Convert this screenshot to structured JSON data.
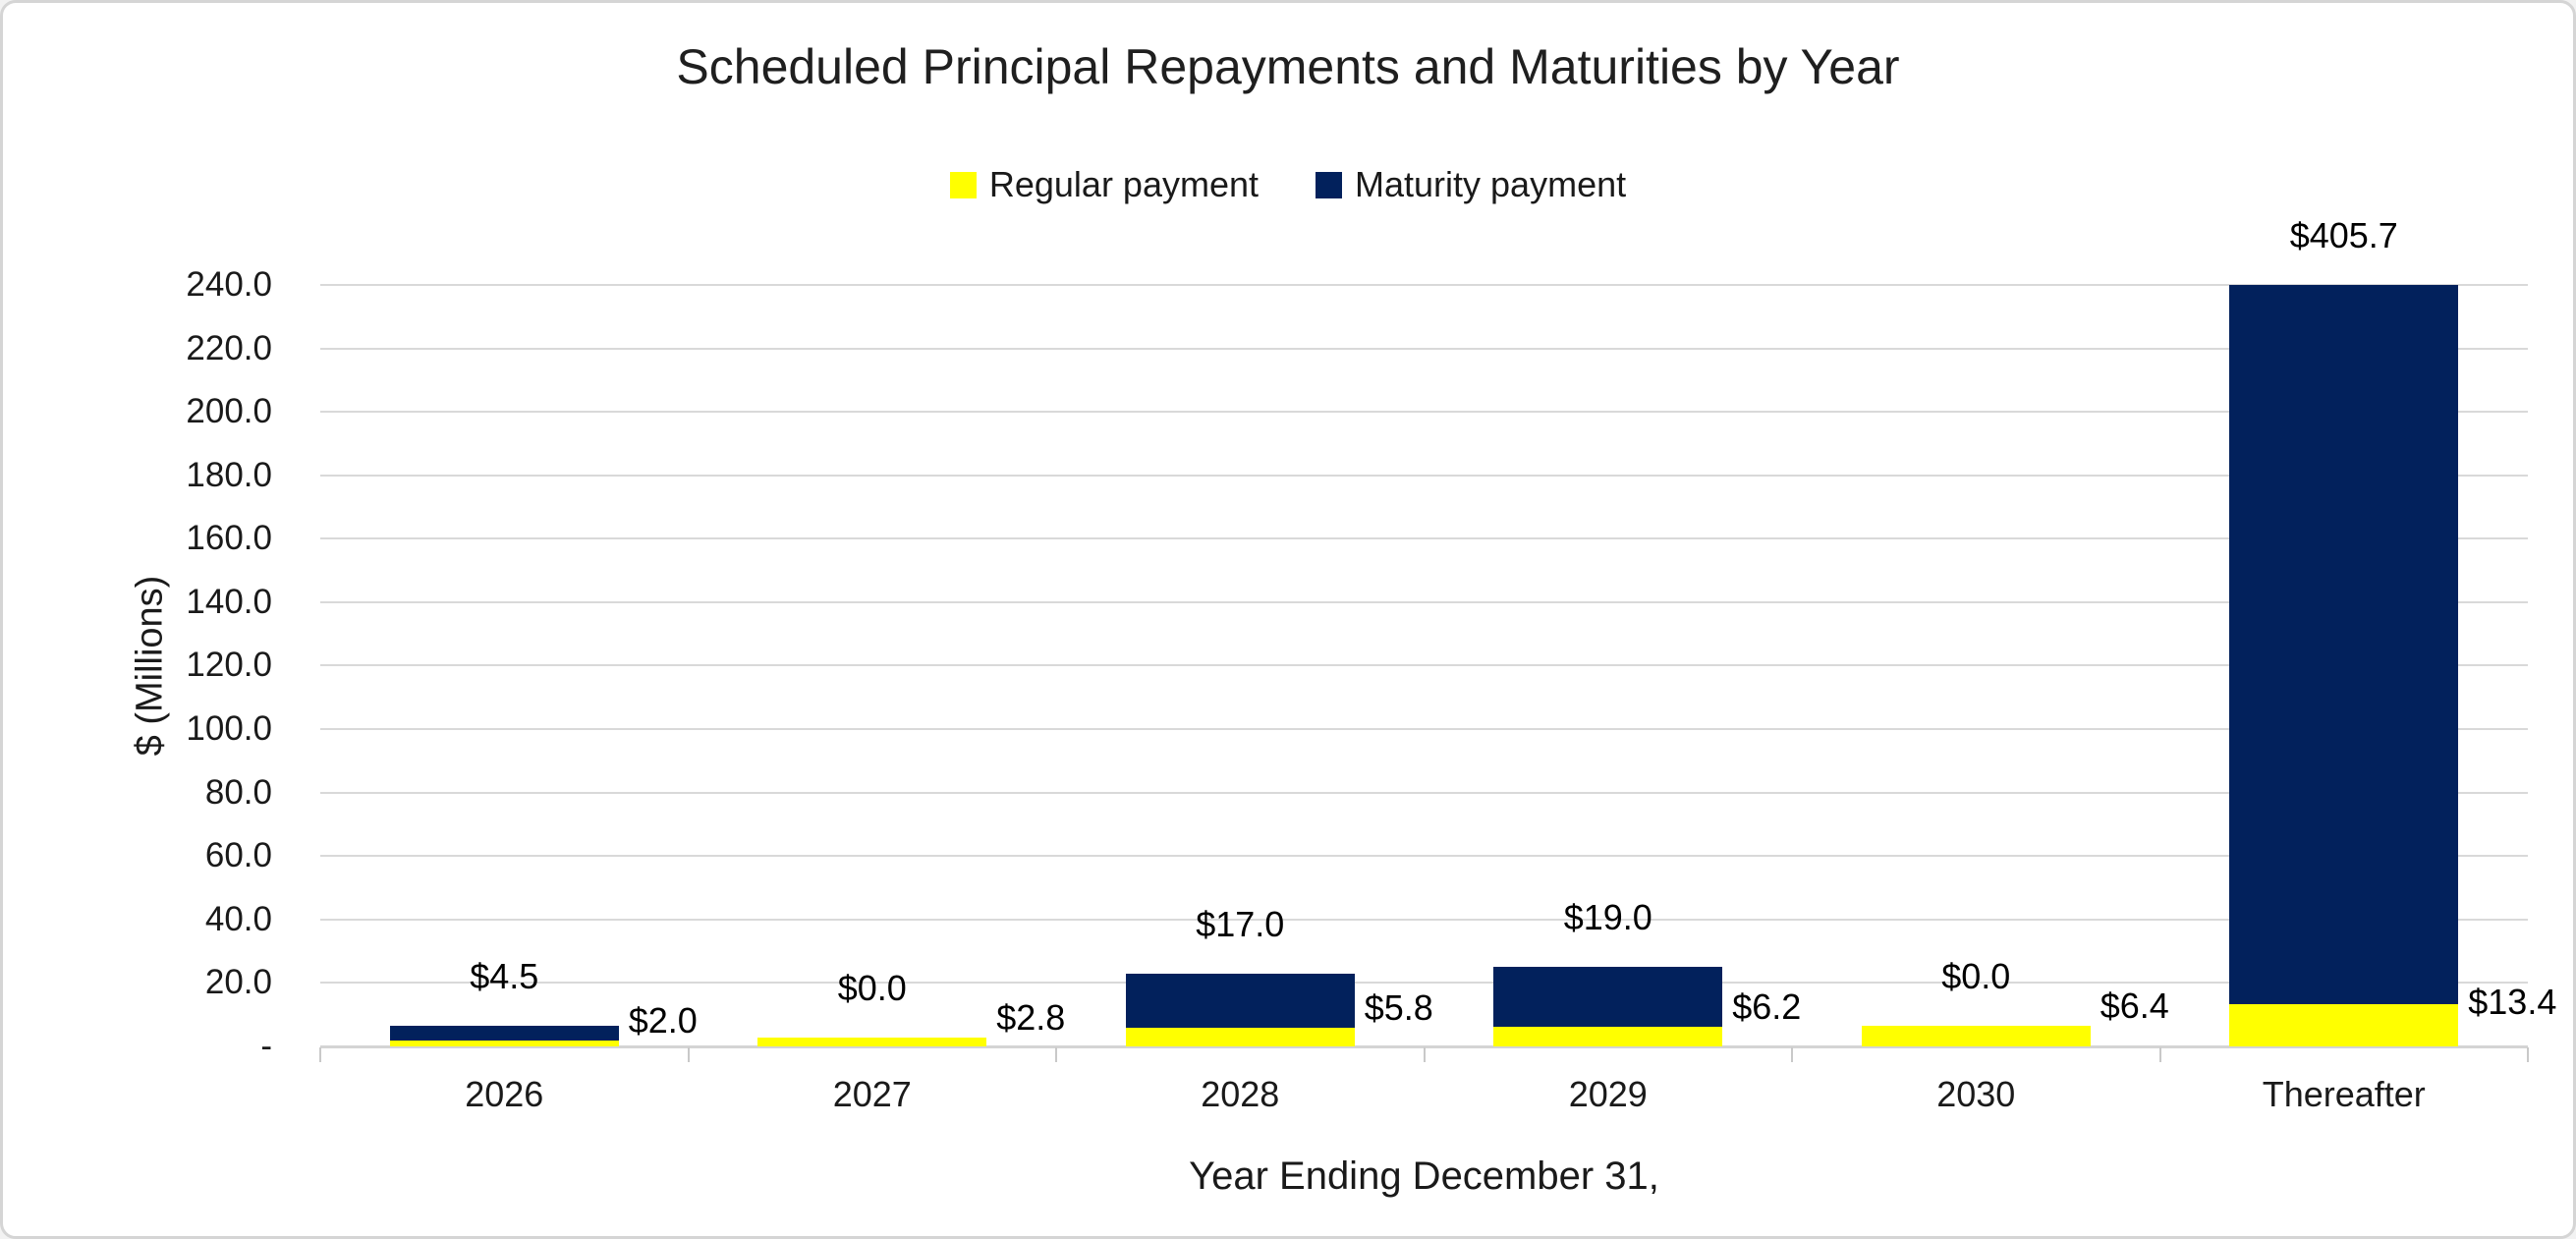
{
  "chart_data": {
    "type": "bar",
    "stacked": true,
    "title": "Scheduled Principal Repayments and Maturities by Year",
    "xlabel": "Year Ending December 31,",
    "ylabel": "$ (Millions)",
    "categories": [
      "2026",
      "2027",
      "2028",
      "2029",
      "2030",
      "Thereafter"
    ],
    "series": [
      {
        "name": "Regular payment",
        "color": "#FFFF00",
        "values": [
          2.0,
          2.8,
          5.8,
          6.2,
          6.4,
          13.4
        ],
        "data_labels": [
          "$2.0",
          "$2.8",
          "$5.8",
          "$6.2",
          "$6.4",
          "$13.4"
        ],
        "label_placement": "right-of-bar"
      },
      {
        "name": "Maturity payment",
        "color": "#02215C",
        "values": [
          4.5,
          0.0,
          17.0,
          19.0,
          0.0,
          405.7
        ],
        "data_labels": [
          "$4.5",
          "$0.0",
          "$17.0",
          "$19.0",
          "$0.0",
          "$405.7"
        ],
        "label_placement": "above-stack"
      }
    ],
    "ylim": [
      0,
      240
    ],
    "ytick_step": 20,
    "ytick_labels": [
      "-",
      "20.0",
      "40.0",
      "60.0",
      "80.0",
      "100.0",
      "120.0",
      "140.0",
      "160.0",
      "180.0",
      "200.0",
      "220.0",
      "240.0"
    ],
    "grid": true,
    "legend_position": "top",
    "note_bars_clipped_at_ymax": [
      "Thereafter"
    ]
  },
  "colors": {
    "regular_payment": "#FFFF00",
    "maturity_payment": "#02215C",
    "gridline": "#D9D9D9",
    "axis_line": "#D4D4D4",
    "text": "#1A1A1A",
    "background": "#FFFFFF",
    "frame_border": "#D5D5D5"
  }
}
